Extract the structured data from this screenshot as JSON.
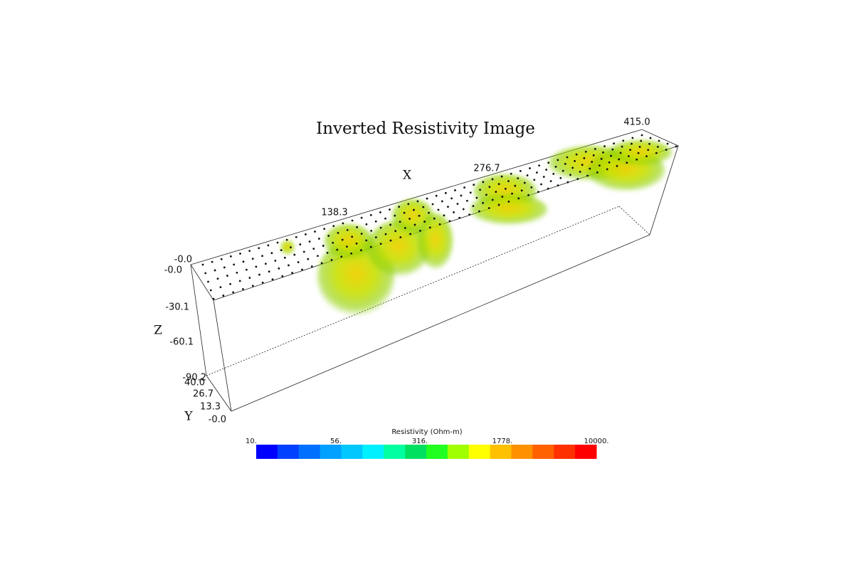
{
  "title": "Inverted Resistivity Image",
  "axes": {
    "x": {
      "label": "X",
      "ticks": [
        "138.3",
        "276.7",
        "415.0"
      ]
    },
    "y": {
      "label": "Y",
      "ticks": [
        "40.0",
        "26.7",
        "13.3",
        "-0.0"
      ]
    },
    "z": {
      "label": "Z",
      "ticks": [
        "-0.0",
        "-0.0",
        "-30.1",
        "-60.1",
        "-90.2"
      ]
    }
  },
  "colorbar": {
    "label": "Resistivity (Ohm-m)",
    "ticks": [
      "10.",
      "56.",
      "316.",
      "1778.",
      "10000."
    ],
    "colors": [
      "#0000ff",
      "#0040ff",
      "#0070ff",
      "#00a0ff",
      "#00c8ff",
      "#00f0ff",
      "#00ffa0",
      "#00e060",
      "#20ff20",
      "#a0ff00",
      "#ffff00",
      "#ffc000",
      "#ff9000",
      "#ff6000",
      "#ff3000",
      "#ff0000"
    ]
  }
}
